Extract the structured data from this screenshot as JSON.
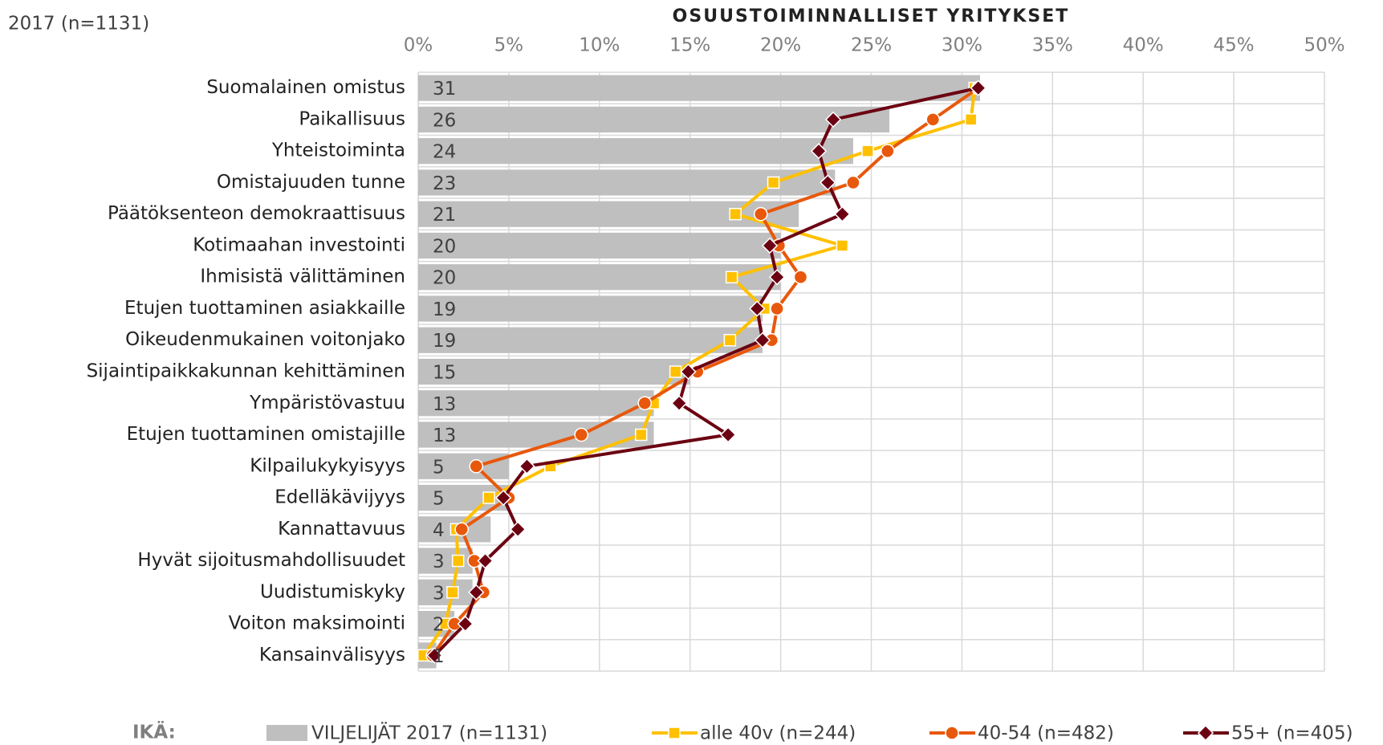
{
  "chart_data": {
    "type": "bar",
    "orientation": "horizontal",
    "title": "OSUUSTOIMINNALLISET YRITYKSET",
    "subtitle": "2017 (n=1131)",
    "legend_title": "IKÄ:",
    "categories": [
      "Suomalainen omistus",
      "Paikallisuus",
      "Yhteistoiminta",
      "Omistajuuden tunne",
      "Päätöksenteon demokraattisuus",
      "Kotimaahan investointi",
      "Ihmisistä välittäminen",
      "Etujen tuottaminen asiakkaille",
      "Oikeudenmukainen voitonjako",
      "Sijaintipaikkakunnan kehittäminen",
      "Ympäristövastuu",
      "Etujen tuottaminen omistajille",
      "Kilpailukykyisyys",
      "Edelläkävijyys",
      "Kannattavuus",
      "Hyvät sijoitusmahdollisuudet",
      "Uudistumiskyky",
      "Voiton maksimointi",
      "Kansainvälisyys"
    ],
    "series": [
      {
        "name": "VILJELIJÄT 2017 (n=1131)",
        "type": "bar",
        "color": "#bfbfbf",
        "values": [
          31,
          26,
          24,
          23,
          21,
          20,
          20,
          19,
          19,
          15,
          13,
          13,
          5,
          5,
          4,
          3,
          3,
          2,
          1
        ]
      },
      {
        "name": "alle 40v (n=244)",
        "type": "line",
        "marker": "square",
        "color": "#ffc000",
        "values": [
          30.7,
          30.5,
          24.8,
          19.6,
          17.5,
          23.4,
          17.3,
          19.1,
          17.2,
          14.2,
          13.0,
          12.3,
          7.3,
          3.9,
          2.1,
          2.2,
          1.9,
          1.5,
          0.3
        ]
      },
      {
        "name": "40-54 (n=482)",
        "type": "line",
        "marker": "circle",
        "color": "#e8580c",
        "values": [
          30.9,
          28.4,
          25.9,
          24.0,
          18.9,
          19.9,
          21.1,
          19.8,
          19.5,
          15.4,
          12.5,
          9.0,
          3.2,
          5.0,
          2.4,
          3.1,
          3.6,
          2.0,
          0.8
        ]
      },
      {
        "name": "55+ (n=405)",
        "type": "line",
        "marker": "diamond",
        "color": "#6b0012",
        "values": [
          30.9,
          22.9,
          22.1,
          22.6,
          23.4,
          19.4,
          19.8,
          18.7,
          19.0,
          14.9,
          14.4,
          17.1,
          6.0,
          4.7,
          5.5,
          3.7,
          3.2,
          2.6,
          0.9
        ]
      }
    ],
    "xlim": [
      0,
      50
    ],
    "xticks": [
      {
        "value": 0,
        "label": "0%"
      },
      {
        "value": 5,
        "label": "5%"
      },
      {
        "value": 10,
        "label": "10%"
      },
      {
        "value": 15,
        "label": "15%"
      },
      {
        "value": 20,
        "label": "20%"
      },
      {
        "value": 25,
        "label": "25%"
      },
      {
        "value": 30,
        "label": "30%"
      },
      {
        "value": 35,
        "label": "35%"
      },
      {
        "value": 40,
        "label": "40%"
      },
      {
        "value": 45,
        "label": "45%"
      },
      {
        "value": 50,
        "label": "50%"
      }
    ],
    "grid": true,
    "legend": "bottom"
  }
}
